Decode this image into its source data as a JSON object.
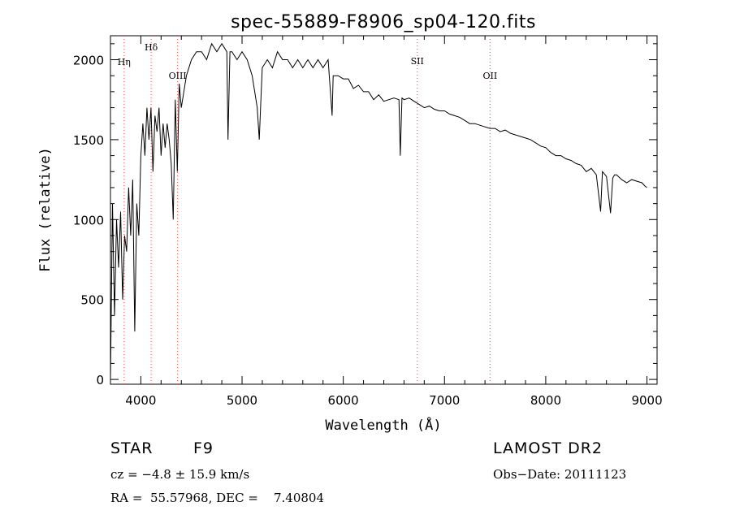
{
  "chart_data": {
    "type": "line",
    "title": "spec-55889-F8906_sp04-120.fits",
    "xlabel": "Wavelength (Å)",
    "ylabel": "Flux (relative)",
    "xlim": [
      3700,
      9100
    ],
    "ylim": [
      -30,
      2150
    ],
    "xticks": [
      4000,
      5000,
      6000,
      7000,
      8000,
      9000
    ],
    "yticks": [
      0,
      500,
      1000,
      1500,
      2000
    ],
    "line_markers": [
      {
        "label": "Hη",
        "x": 3835
      },
      {
        "label": "Hδ",
        "x": 4102
      },
      {
        "label": "OIII",
        "x": 4363
      },
      {
        "label": "SII",
        "x": 6731
      },
      {
        "label": "OII",
        "x": 7450
      }
    ],
    "series": [
      {
        "x": [
          3700,
          3720,
          3740,
          3760,
          3780,
          3800,
          3820,
          3840,
          3860,
          3880,
          3900,
          3920,
          3940,
          3960,
          3980,
          4000,
          4020,
          4040,
          4060,
          4080,
          4100,
          4120,
          4140,
          4160,
          4180,
          4200,
          4220,
          4240,
          4260,
          4280,
          4300,
          4320,
          4340,
          4360,
          4380,
          4400,
          4450,
          4500,
          4550,
          4600,
          4650,
          4700,
          4750,
          4800,
          4850,
          4861,
          4880,
          4900,
          4950,
          5000,
          5050,
          5100,
          5150,
          5170,
          5183,
          5200,
          5250,
          5300,
          5350,
          5400,
          5450,
          5500,
          5550,
          5600,
          5650,
          5700,
          5750,
          5800,
          5850,
          5890,
          5900,
          5950,
          6000,
          6050,
          6100,
          6150,
          6200,
          6250,
          6300,
          6350,
          6400,
          6450,
          6500,
          6550,
          6563,
          6580,
          6600,
          6650,
          6700,
          6750,
          6800,
          6850,
          6900,
          6950,
          7000,
          7050,
          7100,
          7150,
          7200,
          7250,
          7300,
          7350,
          7400,
          7450,
          7500,
          7550,
          7600,
          7650,
          7700,
          7750,
          7800,
          7850,
          7900,
          7950,
          8000,
          8050,
          8100,
          8150,
          8200,
          8250,
          8300,
          8350,
          8400,
          8450,
          8500,
          8542,
          8560,
          8600,
          8640,
          8662,
          8680,
          8700,
          8750,
          8800,
          8850,
          8900,
          8950,
          8980,
          9000
        ],
        "values": [
          0,
          1100,
          400,
          1000,
          700,
          1050,
          500,
          900,
          800,
          1200,
          900,
          1250,
          300,
          1100,
          900,
          1400,
          1600,
          1400,
          1700,
          1500,
          1700,
          1300,
          1650,
          1550,
          1700,
          1400,
          1600,
          1450,
          1600,
          1500,
          1350,
          1000,
          1750,
          1300,
          1850,
          1700,
          1900,
          2000,
          2050,
          2050,
          2000,
          2100,
          2050,
          2100,
          2050,
          1500,
          2050,
          2050,
          2000,
          2050,
          2000,
          1900,
          1700,
          1500,
          1700,
          1950,
          2000,
          1950,
          2050,
          2000,
          2000,
          1950,
          2000,
          1950,
          2000,
          1950,
          2000,
          1950,
          2000,
          1650,
          1900,
          1900,
          1880,
          1880,
          1820,
          1840,
          1800,
          1800,
          1750,
          1780,
          1740,
          1750,
          1760,
          1750,
          1400,
          1760,
          1750,
          1760,
          1740,
          1720,
          1700,
          1710,
          1690,
          1680,
          1680,
          1660,
          1650,
          1640,
          1620,
          1600,
          1600,
          1590,
          1580,
          1570,
          1570,
          1550,
          1560,
          1540,
          1530,
          1520,
          1510,
          1500,
          1480,
          1460,
          1450,
          1420,
          1400,
          1400,
          1380,
          1370,
          1350,
          1340,
          1300,
          1320,
          1280,
          1050,
          1300,
          1270,
          1040,
          1260,
          1280,
          1280,
          1250,
          1230,
          1250,
          1240,
          1230,
          1210,
          1200
        ]
      }
    ]
  },
  "footer": {
    "object_class": "STAR",
    "subclass": "F9",
    "survey": "LAMOST DR2",
    "redshift_line": "cz = −4.8 ± 15.9 km/s",
    "obs_date_line": "Obs−Date: 20111123",
    "coords_line": "RA =  55.57968, DEC =    7.40804"
  }
}
